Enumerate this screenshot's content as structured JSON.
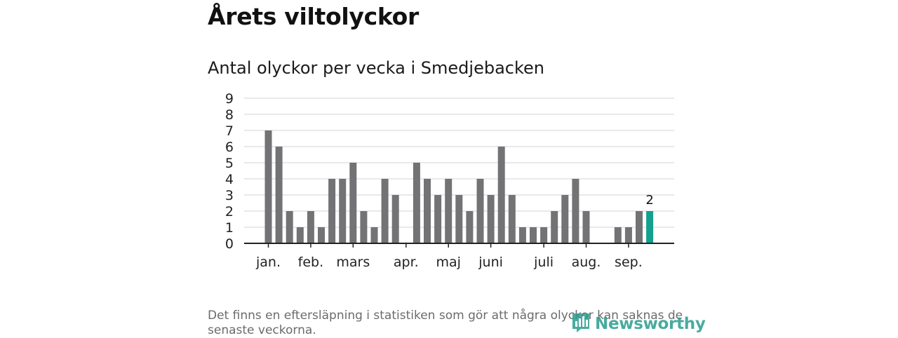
{
  "title": "Årets viltolyckor",
  "subtitle": "Antal olyckor per vecka i Smedjebacken",
  "footnote": "Det finns en eftersläpning i statistiken som gör att några olyckor kan saknas de senaste veckorna.",
  "brand": {
    "name": "Newsworthy",
    "color": "#2a9d8f",
    "icon": "bar-chart-logo-icon"
  },
  "chart_data": {
    "type": "bar",
    "title": "Antal olyckor per vecka i Smedjebacken",
    "xlabel": "",
    "ylabel": "",
    "ylim": [
      0,
      9
    ],
    "yticks": [
      "0",
      "1",
      "2",
      "3",
      "4",
      "5",
      "6",
      "7",
      "8",
      "9"
    ],
    "grid": true,
    "colors": {
      "bar": "#737275",
      "highlight": "#13a090"
    },
    "series": [
      {
        "values": [
          7,
          6,
          2,
          1,
          2,
          1,
          4,
          4,
          5,
          2,
          1,
          4,
          3,
          0,
          5,
          4,
          3,
          4,
          3,
          2,
          4,
          3,
          6,
          3,
          1,
          1,
          1,
          2,
          3,
          4,
          2,
          0,
          0,
          1,
          1,
          2,
          2
        ]
      }
    ],
    "highlight_index": 36,
    "highlight_label": "2",
    "month_labels": [
      {
        "label": "jan.",
        "week_index": 0
      },
      {
        "label": "feb.",
        "week_index": 4
      },
      {
        "label": "mars",
        "week_index": 8
      },
      {
        "label": "apr.",
        "week_index": 13
      },
      {
        "label": "maj",
        "week_index": 17
      },
      {
        "label": "juni",
        "week_index": 21
      },
      {
        "label": "juli",
        "week_index": 26
      },
      {
        "label": "aug.",
        "week_index": 30
      },
      {
        "label": "sep.",
        "week_index": 34
      }
    ]
  }
}
